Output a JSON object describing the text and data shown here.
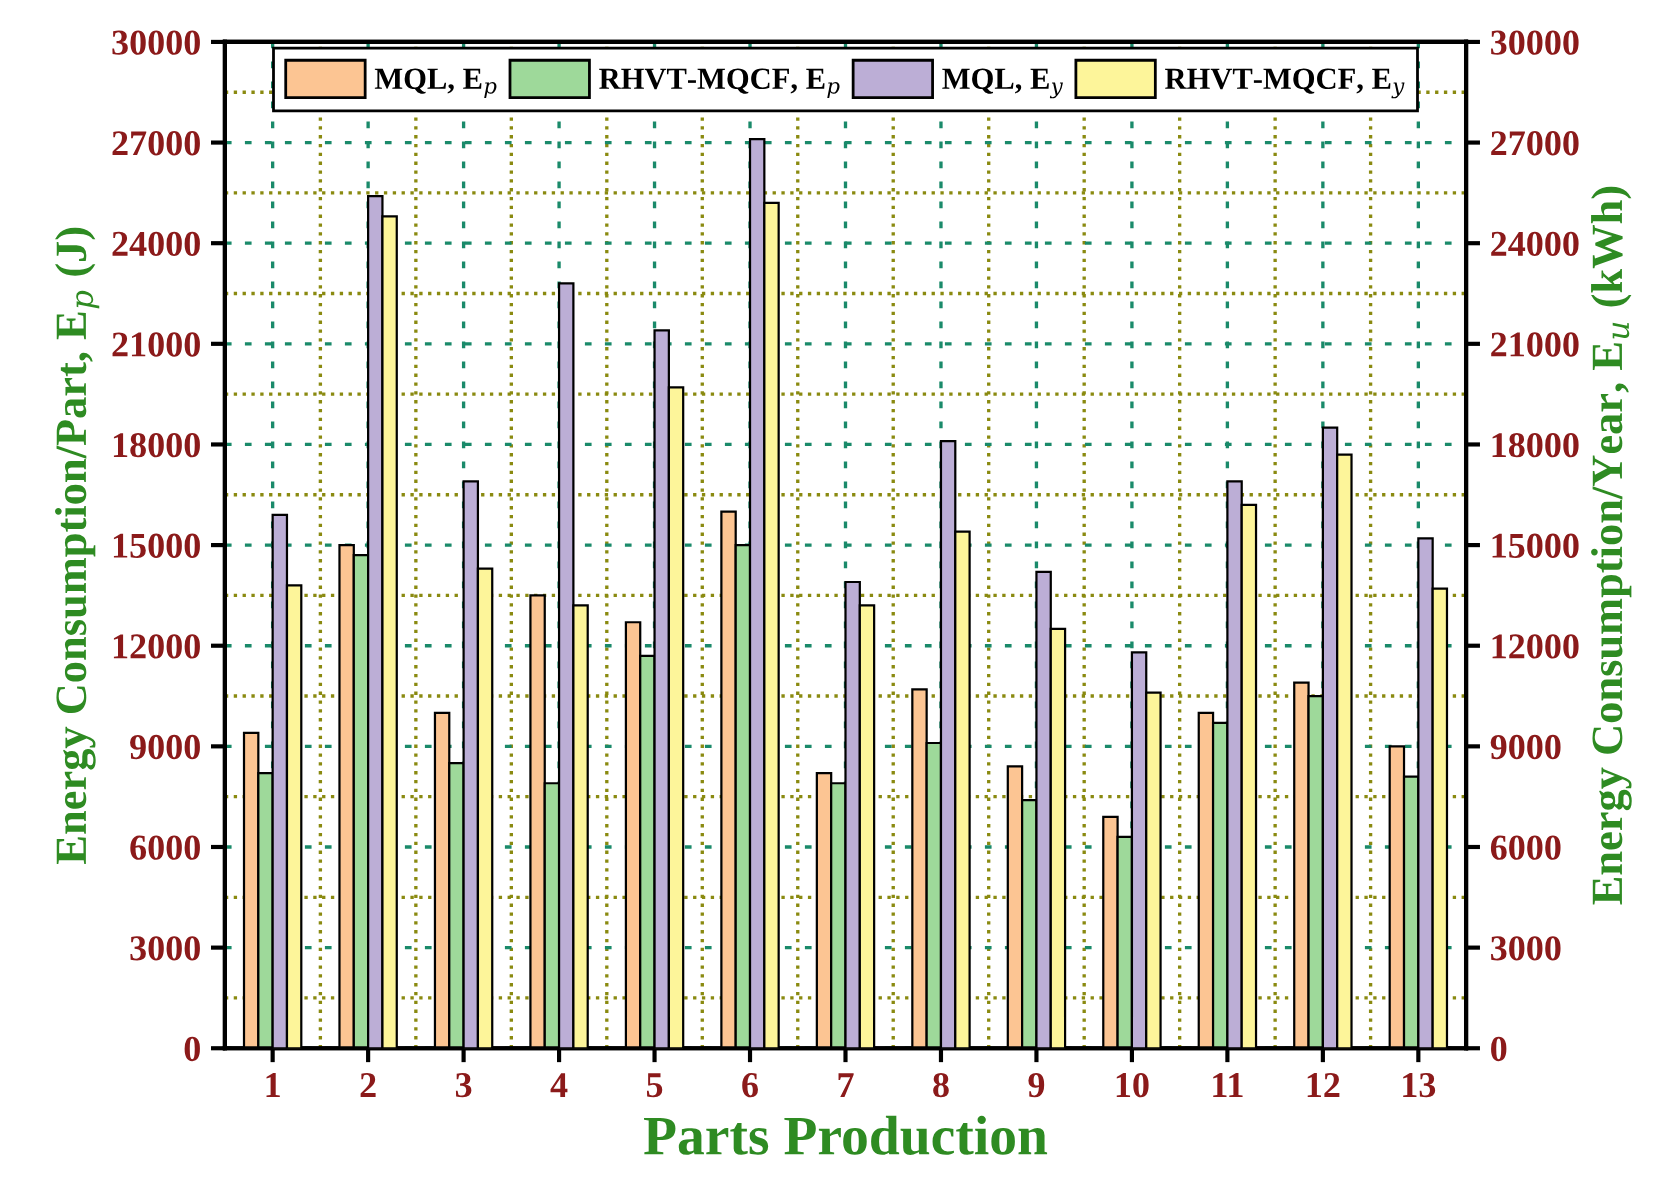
{
  "chart_data": {
    "type": "bar",
    "xlabel": "Parts Production",
    "ylabel": "Energy Consumption/Part, E$_{p}$ (J)",
    "y2label": "Energy Consumption/Year, E$_{u}$ (kWh)",
    "categories": [
      "1",
      "2",
      "3",
      "4",
      "5",
      "6",
      "7",
      "8",
      "9",
      "10",
      "11",
      "12",
      "13"
    ],
    "series": [
      {
        "name": "MQL, E$_{p}$",
        "color": "#fcc593",
        "values": [
          9400,
          15000,
          10000,
          13500,
          12700,
          16000,
          8200,
          10700,
          8400,
          6900,
          10000,
          10900,
          9000
        ]
      },
      {
        "name": "RHVT-MQCF, E$_{p}$",
        "color": "#9ed99a",
        "values": [
          8200,
          14700,
          8500,
          7900,
          11700,
          15000,
          7900,
          9100,
          7400,
          6300,
          9700,
          10500,
          8100
        ]
      },
      {
        "name": "MQL, E$_{y}$",
        "color": "#bcaed6",
        "axis": "y2",
        "values": [
          15900,
          25400,
          16900,
          22800,
          21400,
          27100,
          13900,
          18100,
          14200,
          11800,
          16900,
          18500,
          15200
        ]
      },
      {
        "name": "RHVT-MQCF, E$_{y}$",
        "color": "#fdf59a",
        "axis": "y2",
        "values": [
          13800,
          24800,
          14300,
          13200,
          19700,
          25200,
          13200,
          15400,
          12500,
          10600,
          16200,
          17700,
          13700
        ]
      }
    ],
    "ylim": [
      0,
      30000
    ],
    "yticks": [
      0,
      3000,
      6000,
      9000,
      12000,
      15000,
      18000,
      21000,
      24000,
      27000,
      30000
    ],
    "y2lim": [
      0,
      30000
    ],
    "y2ticks": [
      0,
      3000,
      6000,
      9000,
      12000,
      15000,
      18000,
      21000,
      24000,
      27000,
      30000
    ],
    "grid": true,
    "legend": "top"
  }
}
